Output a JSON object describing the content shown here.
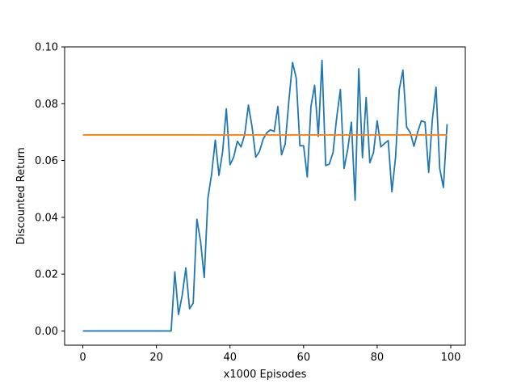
{
  "chart_data": {
    "type": "line",
    "title": "",
    "xlabel": "x1000 Episodes",
    "ylabel": "Discounted Return",
    "xlim": [
      -4.95,
      103.95
    ],
    "ylim": [
      -0.005,
      0.1
    ],
    "xticks": [
      0,
      20,
      40,
      60,
      80,
      100
    ],
    "xtick_labels": [
      "0",
      "20",
      "40",
      "60",
      "80",
      "100"
    ],
    "yticks": [
      0.0,
      0.02,
      0.04,
      0.06,
      0.08,
      0.1
    ],
    "ytick_labels": [
      "0.00",
      "0.02",
      "0.04",
      "0.06",
      "0.08",
      "0.10"
    ],
    "grid": false,
    "legend": "none",
    "series": [
      {
        "color": "#1f77b4",
        "x": [
          0,
          1,
          2,
          3,
          4,
          5,
          6,
          7,
          8,
          9,
          10,
          11,
          12,
          13,
          14,
          15,
          16,
          17,
          18,
          19,
          20,
          21,
          22,
          23,
          24,
          25,
          26,
          27,
          28,
          29,
          30,
          31,
          32,
          33,
          34,
          35,
          36,
          37,
          38,
          39,
          40,
          41,
          42,
          43,
          44,
          45,
          46,
          47,
          48,
          49,
          50,
          51,
          52,
          53,
          54,
          55,
          56,
          57,
          58,
          59,
          60,
          61,
          62,
          63,
          64,
          65,
          66,
          67,
          68,
          69,
          70,
          71,
          72,
          73,
          74,
          75,
          76,
          77,
          78,
          79,
          80,
          81,
          82,
          83,
          84,
          85,
          86,
          87,
          88,
          89,
          90,
          91,
          92,
          93,
          94,
          95,
          96,
          97,
          98,
          99
        ],
        "y": [
          0,
          0,
          0,
          0,
          0,
          0,
          0,
          0,
          0,
          0,
          0,
          0,
          0,
          0,
          0,
          0,
          0,
          0,
          0,
          0,
          0,
          0,
          0,
          0,
          0,
          0.0208,
          0.0058,
          0.0125,
          0.0222,
          0.0078,
          0.0098,
          0.0393,
          0.0315,
          0.0188,
          0.0468,
          0.0552,
          0.0672,
          0.0548,
          0.0632,
          0.0782,
          0.0585,
          0.0612,
          0.0668,
          0.0648,
          0.0692,
          0.0795,
          0.0718,
          0.0612,
          0.0632,
          0.0675,
          0.0698,
          0.0708,
          0.0702,
          0.079,
          0.062,
          0.0658,
          0.081,
          0.0945,
          0.089,
          0.0652,
          0.0652,
          0.0542,
          0.079,
          0.0865,
          0.0685,
          0.0953,
          0.0582,
          0.0588,
          0.0628,
          0.0752,
          0.085,
          0.0572,
          0.064,
          0.0735,
          0.046,
          0.0923,
          0.061,
          0.0822,
          0.0592,
          0.0628,
          0.074,
          0.0648,
          0.066,
          0.067,
          0.049,
          0.0612,
          0.085,
          0.0918,
          0.0718,
          0.0698,
          0.065,
          0.07,
          0.074,
          0.0735,
          0.0558,
          0.0745,
          0.0858,
          0.0572,
          0.0505,
          0.0728
        ]
      },
      {
        "color": "#ff7f0e",
        "x": [
          0,
          99
        ],
        "y": [
          0.069,
          0.069
        ]
      }
    ]
  }
}
